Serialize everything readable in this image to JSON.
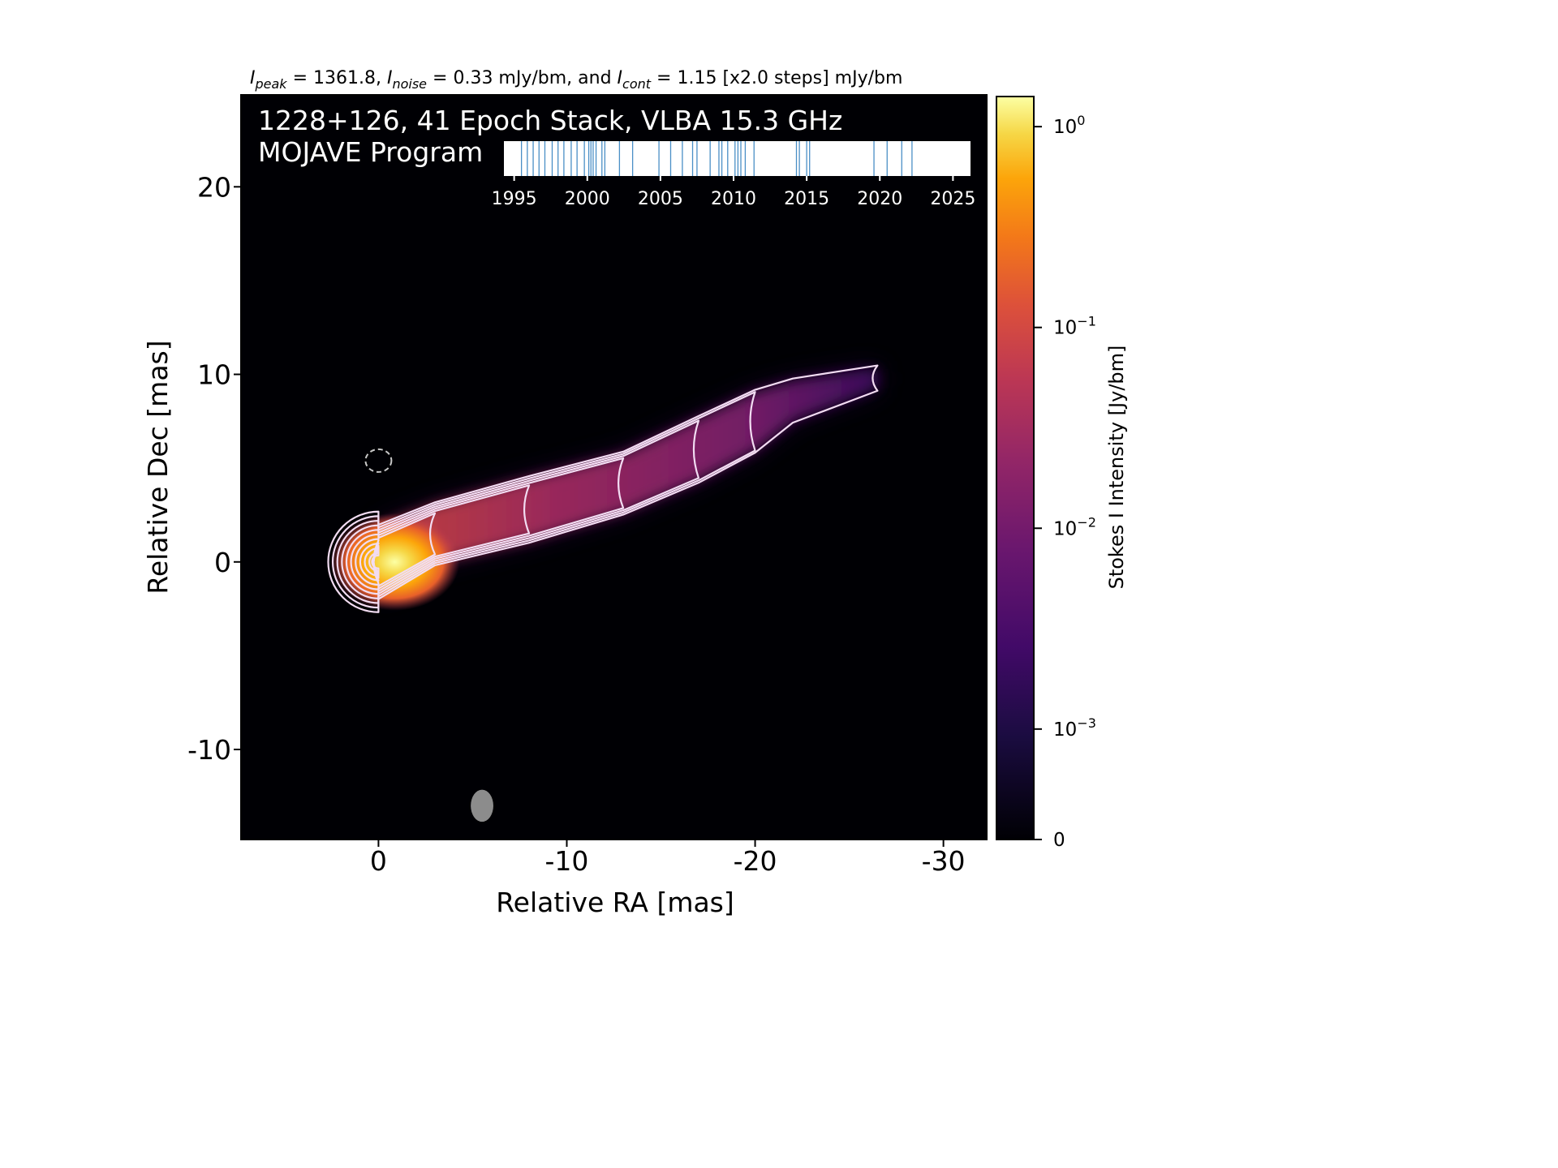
{
  "chart_data": {
    "type": "heatmap",
    "header_parts": [
      {
        "italic": "I",
        "sub": "peak",
        "text": " = 1361.8, "
      },
      {
        "italic": "I",
        "sub": "noise",
        "text": " = 0.33 mJy/bm, and "
      },
      {
        "italic": "I",
        "sub": "cont",
        "text": " = 1.15 [x2.0 steps] mJy/bm"
      }
    ],
    "title_line1": "1228+126, 41 Epoch Stack, VLBA 15.3 GHz",
    "title_line2": "MOJAVE Program",
    "xlabel": "Relative RA [mas]",
    "ylabel": "Relative Dec [mas]",
    "xlim": [
      7.3,
      -32.3
    ],
    "ylim": [
      -14.8,
      24.9
    ],
    "x_ticks": [
      0,
      -10,
      -20,
      -30
    ],
    "y_ticks": [
      -10,
      0,
      10,
      20
    ],
    "grid": false,
    "colormap": "inferno",
    "colorbar": {
      "label": "Stokes I Intensity [Jy/bm]",
      "ticks": [
        {
          "value": 0,
          "label": "0"
        },
        {
          "value": 0.001,
          "label": "10",
          "exp": "−3"
        },
        {
          "value": 0.01,
          "label": "10",
          "exp": "−2"
        },
        {
          "value": 0.1,
          "label": "10",
          "exp": "−1"
        },
        {
          "value": 1,
          "label": "10",
          "exp": "0"
        }
      ]
    },
    "epoch_timeline": {
      "xlim": [
        1994.3,
        2026.2
      ],
      "ticks": [
        1995,
        2000,
        2005,
        2010,
        2015,
        2020,
        2025
      ],
      "epochs": [
        1995.5,
        1995.9,
        1996.3,
        1996.7,
        1997.1,
        1997.6,
        1998.0,
        1998.4,
        1998.9,
        1999.3,
        1999.8,
        2000.1,
        2000.25,
        2000.4,
        2000.6,
        2001.0,
        2001.2,
        2002.2,
        2003.1,
        2004.9,
        2005.7,
        2006.5,
        2007.2,
        2007.5,
        2008.4,
        2009.0,
        2009.2,
        2009.6,
        2010.1,
        2010.3,
        2010.5,
        2010.8,
        2011.4,
        2014.3,
        2014.5,
        2015.0,
        2015.2,
        2019.6,
        2020.5,
        2021.5,
        2022.2
      ]
    },
    "contour_levels_mjy": [
      1.15,
      2.3,
      4.6,
      9.2,
      18.4,
      36.8,
      73.6,
      147.2,
      294.4,
      588.8,
      1177.6
    ],
    "jet_ridge": [
      {
        "x": 0,
        "y": 0,
        "width": 1.8
      },
      {
        "x": -3,
        "y": 1.5,
        "width": 1.5
      },
      {
        "x": -8,
        "y": 2.8,
        "width": 1.6
      },
      {
        "x": -13,
        "y": 4.2,
        "width": 1.5
      },
      {
        "x": -17,
        "y": 6,
        "width": 1.6
      },
      {
        "x": -20,
        "y": 7.5,
        "width": 1.5
      },
      {
        "x": -22,
        "y": 8.6,
        "width": 1.0
      },
      {
        "x": -26.5,
        "y": 9.8,
        "width": 0.5
      }
    ],
    "negative_contour_center": {
      "x": 0,
      "y": 5.4
    },
    "beam": {
      "x": -5.5,
      "y": -13.0,
      "major_mas": 1.7,
      "minor_mas": 1.2,
      "pa_deg": 0
    }
  }
}
